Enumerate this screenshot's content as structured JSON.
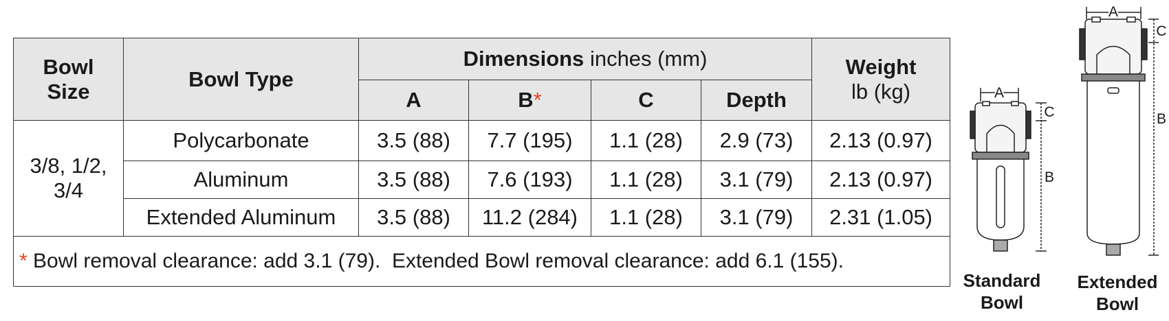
{
  "table": {
    "header": {
      "bowl_size": "Bowl Size",
      "bowl_type": "Bowl Type",
      "dimensions": "Dimensions",
      "dimensions_unit": "inches (mm)",
      "a": "A",
      "b": "B",
      "b_mark": "*",
      "c": "C",
      "depth": "Depth",
      "weight": "Weight",
      "weight_unit": "lb (kg)"
    },
    "bowl_size": "3/8, 1/2, 3/4",
    "rows": [
      [
        "Polycarbonate",
        "3.5 (88)",
        "7.7 (195)",
        "1.1 (28)",
        "2.9 (73)",
        "2.13 (0.97)"
      ],
      [
        "Aluminum",
        "3.5 (88)",
        "7.6 (193)",
        "1.1 (28)",
        "3.1 (79)",
        "2.13 (0.97)"
      ],
      [
        "Extended Aluminum",
        "3.5 (88)",
        "11.2 (284)",
        "1.1 (28)",
        "3.1 (79)",
        "2.31 (1.05)"
      ]
    ],
    "footnote_mark": "*",
    "footnote": "Bowl removal clearance: add 3.1 (79).  Extended Bowl removal clearance: add 6.1 (155)."
  },
  "diagrams": [
    {
      "caption": "Standard Bowl",
      "labels": {
        "a": "A",
        "b": "B",
        "c": "C"
      }
    },
    {
      "caption": "Extended Bowl",
      "labels": {
        "a": "A",
        "b": "B",
        "c": "C"
      }
    }
  ]
}
